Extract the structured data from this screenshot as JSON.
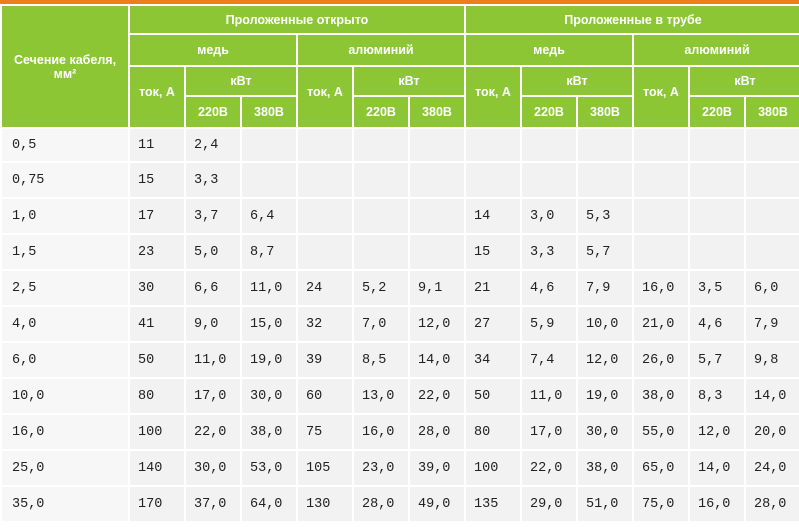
{
  "header": {
    "section_label": "Сечение кабеля, мм²",
    "groups": [
      "Проложенные открыто",
      "Проложенные в трубе"
    ],
    "materials": [
      "медь",
      "алюминий",
      "медь",
      "алюминий"
    ],
    "current_label": "ток, А",
    "power_label": "кВт",
    "voltage_220": "220В",
    "voltage_380": "380В"
  },
  "rows": [
    [
      "0,5",
      "11",
      "2,4",
      "",
      "",
      "",
      "",
      "",
      "",
      "",
      "",
      "",
      ""
    ],
    [
      "0,75",
      "15",
      "3,3",
      "",
      "",
      "",
      "",
      "",
      "",
      "",
      "",
      "",
      ""
    ],
    [
      "1,0",
      "17",
      "3,7",
      "6,4",
      "",
      "",
      "",
      "14",
      "3,0",
      "5,3",
      "",
      "",
      ""
    ],
    [
      "1,5",
      "23",
      "5,0",
      "8,7",
      "",
      "",
      "",
      "15",
      "3,3",
      "5,7",
      "",
      "",
      ""
    ],
    [
      "2,5",
      "30",
      "6,6",
      "11,0",
      "24",
      "5,2",
      "9,1",
      "21",
      "4,6",
      "7,9",
      "16,0",
      "3,5",
      "6,0"
    ],
    [
      "4,0",
      "41",
      "9,0",
      "15,0",
      "32",
      "7,0",
      "12,0",
      "27",
      "5,9",
      "10,0",
      "21,0",
      "4,6",
      "7,9"
    ],
    [
      "6,0",
      "50",
      "11,0",
      "19,0",
      "39",
      "8,5",
      "14,0",
      "34",
      "7,4",
      "12,0",
      "26,0",
      "5,7",
      "9,8"
    ],
    [
      "10,0",
      "80",
      "17,0",
      "30,0",
      "60",
      "13,0",
      "22,0",
      "50",
      "11,0",
      "19,0",
      "38,0",
      "8,3",
      "14,0"
    ],
    [
      "16,0",
      "100",
      "22,0",
      "38,0",
      "75",
      "16,0",
      "28,0",
      "80",
      "17,0",
      "30,0",
      "55,0",
      "12,0",
      "20,0"
    ],
    [
      "25,0",
      "140",
      "30,0",
      "53,0",
      "105",
      "23,0",
      "39,0",
      "100",
      "22,0",
      "38,0",
      "65,0",
      "14,0",
      "24,0"
    ],
    [
      "35,0",
      "170",
      "37,0",
      "64,0",
      "130",
      "28,0",
      "49,0",
      "135",
      "29,0",
      "51,0",
      "75,0",
      "16,0",
      "28,0"
    ]
  ],
  "colors": {
    "header_bg": "#8cc634",
    "cell_bg": "#f2f2f2",
    "accent_bar": "#ee7d1c"
  }
}
